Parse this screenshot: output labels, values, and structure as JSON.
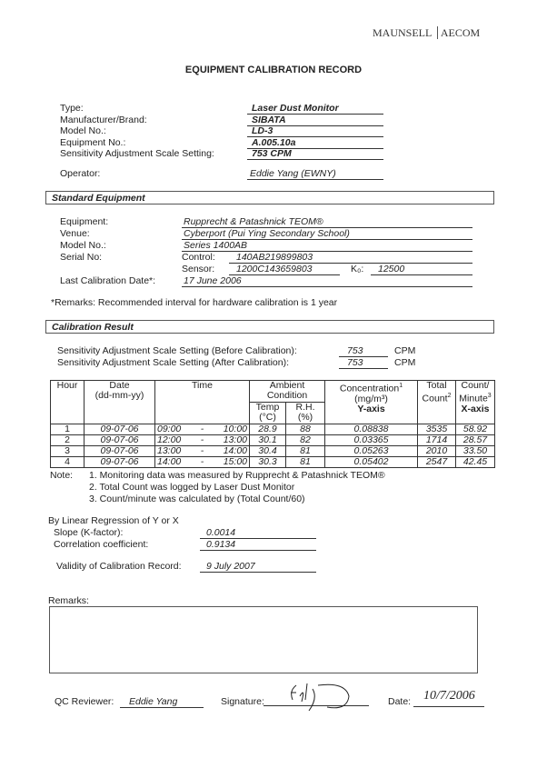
{
  "logo": {
    "left": "MAUNSELL",
    "right": "AECOM"
  },
  "title": "EQUIPMENT CALIBRATION RECORD",
  "equipment": [
    {
      "label": "Type:",
      "value": "Laser Dust Monitor"
    },
    {
      "label": "Manufacturer/Brand:",
      "value": "SIBATA"
    },
    {
      "label": "Model No.:",
      "value": "LD-3"
    },
    {
      "label": "Equipment No.:",
      "value": "A.005.10a"
    },
    {
      "label": "Sensitivity Adjustment Scale Setting:",
      "value": "753  CPM"
    }
  ],
  "operator": {
    "label": "Operator:",
    "value": "Eddie Yang (EWNY)"
  },
  "standard": {
    "heading": "Standard Equipment",
    "equipment_label": "Equipment:",
    "equipment": "Rupprecht & Patashnick TEOM®",
    "venue_label": "Venue:",
    "venue": "Cyberport (Pui Ying Secondary School)",
    "model_label": "Model No.:",
    "model": "Series 1400AB",
    "serial_label": "Serial No:",
    "control_label": "Control:",
    "control": "140AB219899803",
    "sensor_label": "Sensor:",
    "sensor": "1200C143659803",
    "k0_label": "K₀:",
    "k0": "12500",
    "last_cal_label": "Last Calibration Date*:",
    "last_cal": "17 June 2006",
    "remark": "*Remarks: Recommended interval for hardware calibration is 1 year"
  },
  "calibration": {
    "heading": "Calibration Result",
    "before_label": "Sensitivity Adjustment Scale Setting (Before Calibration):",
    "before": "753",
    "before_unit": "CPM",
    "after_label": "Sensitivity Adjustment Scale Setting (After Calibration):",
    "after": "753",
    "after_unit": "CPM"
  },
  "table": {
    "h_hour": "Hour",
    "h_date": "Date",
    "h_date2": "(dd-mm-yy)",
    "h_time": "Time",
    "h_ambient": "Ambient Condition",
    "h_temp": "Temp",
    "h_temp2": "(°C)",
    "h_rh": "R.H.",
    "h_rh2": "(%)",
    "h_conc": "Concentration",
    "h_conc_unit": "(mg/m³)",
    "h_conc_axis": "Y-axis",
    "h_total": "Total",
    "h_total2": "Count",
    "h_cpm": "Count/",
    "h_cpm2": "Minute",
    "h_cpm_axis": "X-axis",
    "rows": [
      {
        "hour": "1",
        "date": "09-07-06",
        "start": "09:00",
        "end": "10:00",
        "temp": "28.9",
        "rh": "88",
        "conc": "0.08838",
        "total": "3535",
        "cpm": "58.92"
      },
      {
        "hour": "2",
        "date": "09-07-06",
        "start": "12:00",
        "end": "13:00",
        "temp": "30.1",
        "rh": "82",
        "conc": "0.03365",
        "total": "1714",
        "cpm": "28.57"
      },
      {
        "hour": "3",
        "date": "09-07-06",
        "start": "13:00",
        "end": "14:00",
        "temp": "30.4",
        "rh": "81",
        "conc": "0.05263",
        "total": "2010",
        "cpm": "33.50"
      },
      {
        "hour": "4",
        "date": "09-07-06",
        "start": "14:00",
        "end": "15:00",
        "temp": "30.3",
        "rh": "81",
        "conc": "0.05402",
        "total": "2547",
        "cpm": "42.45"
      }
    ]
  },
  "notes": {
    "label": "Note:",
    "items": [
      "1. Monitoring data was measured by Rupprecht & Patashnick TEOM®",
      "2. Total Count was logged by Laser Dust Monitor",
      "3. Count/minute was calculated by (Total Count/60)"
    ]
  },
  "regression": {
    "heading": "By Linear Regression of Y or X",
    "slope_label": "Slope (K-factor):",
    "slope": "0.0014",
    "corr_label": "Correlation coefficient:",
    "corr": "0.9134",
    "validity_label": "Validity of Calibration Record:",
    "validity": "9 July 2007"
  },
  "remarks_label": "Remarks:",
  "footer": {
    "reviewer_label": "QC Reviewer:",
    "reviewer": "Eddie Yang",
    "signature_label": "Signature:",
    "signature": "Edy",
    "date_label": "Date:",
    "date": "10/7/2006"
  }
}
